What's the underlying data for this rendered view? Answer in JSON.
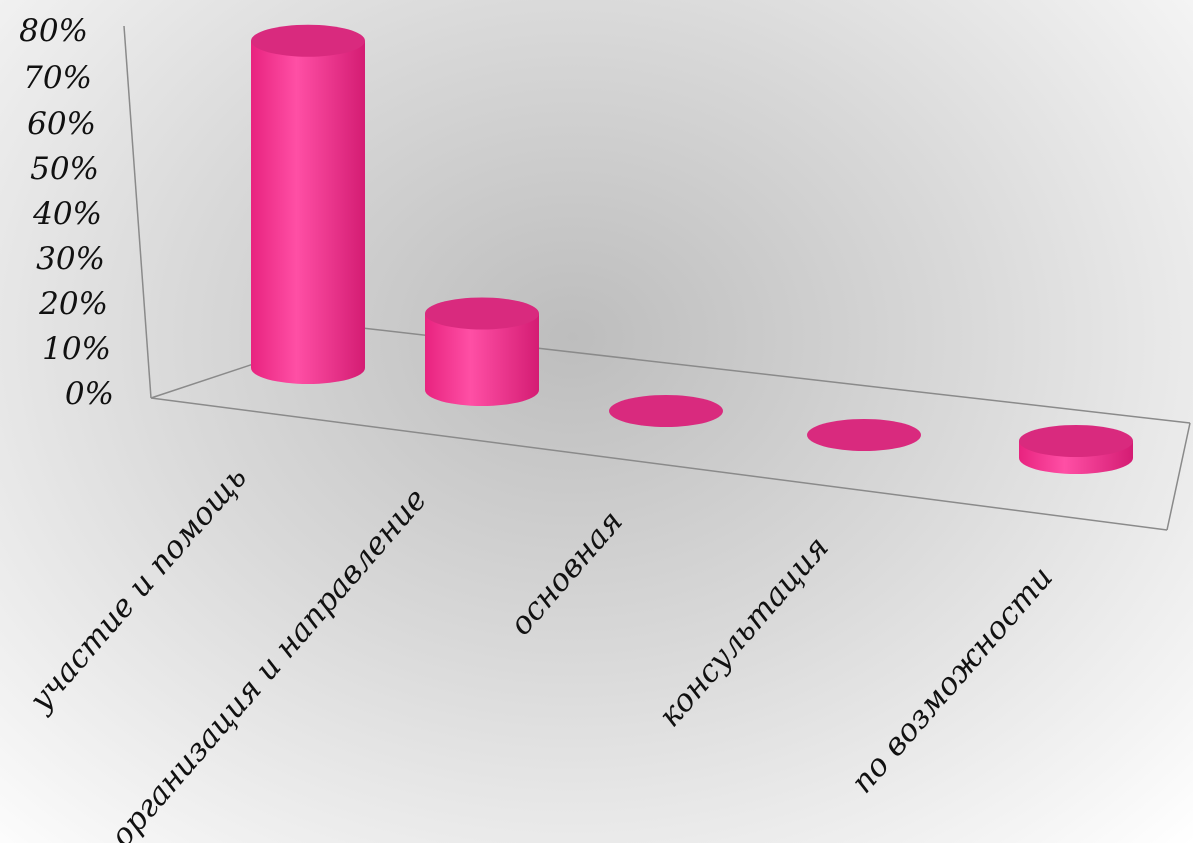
{
  "chart_data": {
    "type": "bar",
    "style": "3d-cylinder",
    "title": "",
    "xlabel": "",
    "ylabel": "",
    "categories": [
      "участие и помощь",
      "организация и направление",
      "основная",
      "консультация",
      "по возможности"
    ],
    "values": [
      77,
      18,
      0,
      0,
      4
    ],
    "value_unit": "%",
    "ylim": [
      0,
      80
    ],
    "yticks": [
      "0%",
      "10%",
      "20%",
      "30%",
      "40%",
      "50%",
      "60%",
      "70%",
      "80%"
    ],
    "grid": false,
    "legend": "none",
    "bar_color": "#f0388f",
    "bar_color_top": "#d92a7e"
  }
}
